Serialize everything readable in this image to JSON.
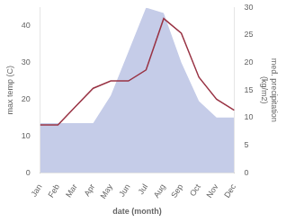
{
  "chart_data": {
    "type": "line",
    "xlabel": "date (month)",
    "ylabel": "max temp (C)",
    "y2label": "med. precipitation\n(kg/m2)",
    "categories": [
      "Jan",
      "Feb",
      "Mar",
      "Apr",
      "May",
      "Jun",
      "Jul",
      "Aug",
      "Sep",
      "Oct",
      "Nov",
      "Dec"
    ],
    "series": [
      {
        "type": "area",
        "color": "#c5cce8",
        "axis": "y2",
        "values": [
          9,
          9,
          9,
          9,
          14,
          22,
          30,
          29,
          20,
          13,
          10,
          10
        ]
      },
      {
        "type": "line",
        "color": "#993344",
        "values": [
          13,
          13,
          18,
          23,
          25,
          25,
          28,
          42,
          38,
          26,
          20,
          17
        ]
      }
    ],
    "ylim": [
      0,
      45
    ],
    "yticks": [
      0,
      10,
      20,
      30,
      40
    ],
    "y2lim": [
      0,
      30
    ],
    "y2ticks": [
      0,
      5,
      10,
      15,
      20,
      25,
      30
    ],
    "grid": false
  }
}
